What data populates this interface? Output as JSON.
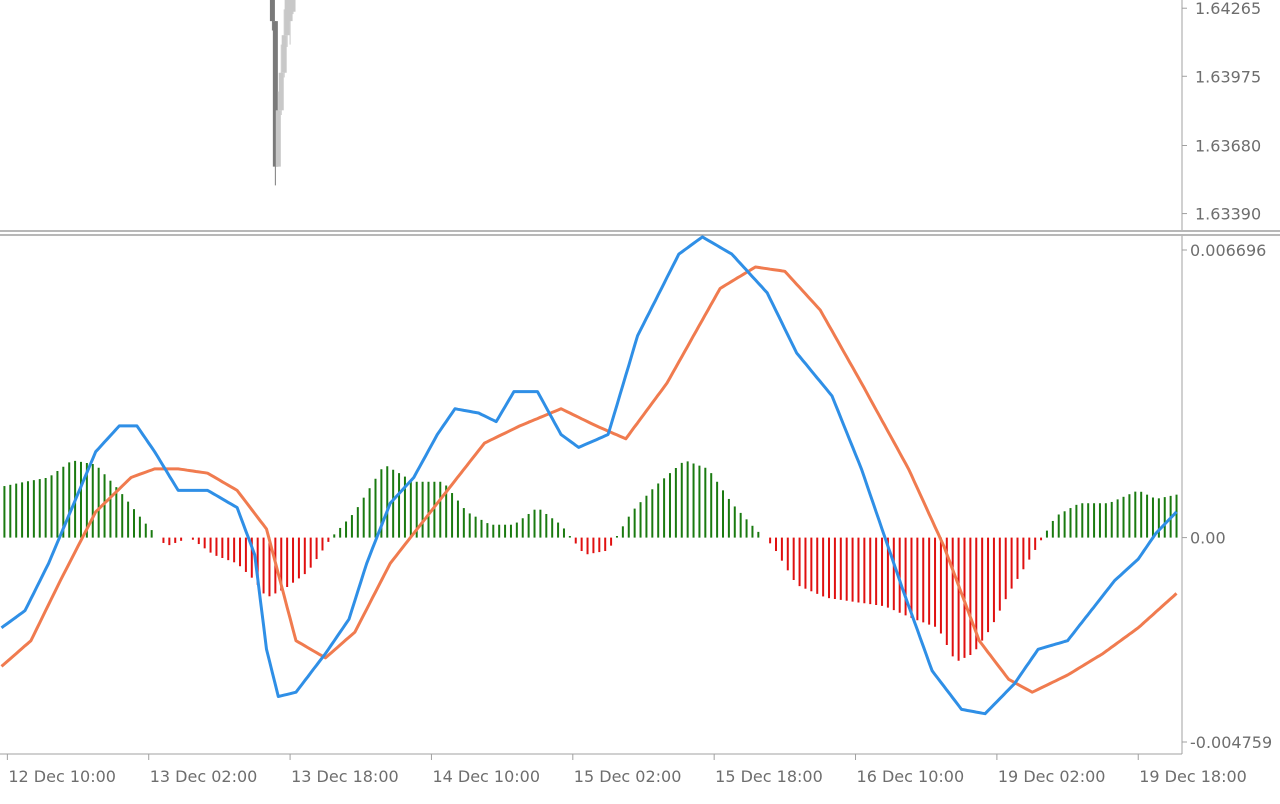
{
  "colors": {
    "background": "#ffffff",
    "axis_text": "#6e6e6e",
    "separator": "#a0a0a0",
    "candle_dark": "#7a7a7a",
    "candle_light": "#c8c8c8",
    "macd_line": "#2f8fe6",
    "signal_line": "#f07b4f",
    "hist_positive": "#1a7a10",
    "hist_negative": "#e01010"
  },
  "chart_data": [
    {
      "type": "candlestick",
      "panel": "price",
      "title": "",
      "y_tick_labels": [
        "1.64265",
        "1.63975",
        "1.63680",
        "1.63390"
      ],
      "ylim": [
        1.6332,
        1.643
      ],
      "visible_candles": [
        {
          "index": 92,
          "open": 1.643,
          "high": 1.643,
          "low": 1.6417,
          "close": 1.6421,
          "direction": "down"
        },
        {
          "index": 93,
          "open": 1.6421,
          "high": 1.6421,
          "low": 1.6351,
          "close": 1.6359,
          "direction": "down"
        },
        {
          "index": 94,
          "open": 1.6359,
          "high": 1.6391,
          "low": 1.6359,
          "close": 1.6383,
          "direction": "up"
        },
        {
          "index": 95,
          "open": 1.6383,
          "high": 1.6411,
          "low": 1.6381,
          "close": 1.6399,
          "direction": "up"
        },
        {
          "index": 96,
          "open": 1.6399,
          "high": 1.6426,
          "low": 1.6397,
          "close": 1.6415,
          "direction": "up"
        },
        {
          "index": 97,
          "open": 1.6415,
          "high": 1.643,
          "low": 1.641,
          "close": 1.643,
          "direction": "up"
        },
        {
          "index": 98,
          "open": 1.6421,
          "high": 1.643,
          "low": 1.6411,
          "close": 1.643,
          "direction": "up"
        },
        {
          "index": 99,
          "open": 1.6425,
          "high": 1.643,
          "low": 1.6424,
          "close": 1.643,
          "direction": "up"
        }
      ]
    },
    {
      "type": "macd",
      "panel": "indicator",
      "title": "",
      "y_tick_labels": [
        "0.006696",
        "0.00",
        "-0.004759"
      ],
      "ylim": [
        -0.004759,
        0.006696
      ],
      "bar_count": 400,
      "x_tick_labels": [
        "12 Dec 10:00",
        "13 Dec 02:00",
        "13 Dec 18:00",
        "14 Dec 10:00",
        "15 Dec 02:00",
        "15 Dec 18:00",
        "16 Dec 10:00",
        "19 Dec 02:00",
        "19 Dec 18:00"
      ],
      "x_tick_bar_index": [
        2,
        50,
        98,
        146,
        194,
        242,
        290,
        338,
        386
      ],
      "macd_line": [
        [
          0,
          -0.0021
        ],
        [
          8,
          -0.0017
        ],
        [
          16,
          -0.0006
        ],
        [
          24,
          0.0007
        ],
        [
          32,
          0.002
        ],
        [
          40,
          0.0026
        ],
        [
          46,
          0.0026
        ],
        [
          52,
          0.002
        ],
        [
          60,
          0.0011
        ],
        [
          70,
          0.0011
        ],
        [
          80,
          0.0007
        ],
        [
          86,
          -0.0004
        ],
        [
          90,
          -0.0026
        ],
        [
          94,
          -0.0037
        ],
        [
          100,
          -0.0036
        ],
        [
          110,
          -0.0027
        ],
        [
          118,
          -0.0019
        ],
        [
          124,
          -0.0006
        ],
        [
          132,
          0.0008
        ],
        [
          140,
          0.0014
        ],
        [
          148,
          0.0024
        ],
        [
          154,
          0.003
        ],
        [
          162,
          0.0029
        ],
        [
          168,
          0.0027
        ],
        [
          174,
          0.0034
        ],
        [
          182,
          0.0034
        ],
        [
          190,
          0.0024
        ],
        [
          196,
          0.0021
        ],
        [
          206,
          0.0024
        ],
        [
          216,
          0.0047
        ],
        [
          230,
          0.0066
        ],
        [
          238,
          0.007
        ],
        [
          248,
          0.0066
        ],
        [
          260,
          0.0057
        ],
        [
          270,
          0.0043
        ],
        [
          282,
          0.0033
        ],
        [
          292,
          0.0016
        ],
        [
          306,
          -0.0012
        ],
        [
          316,
          -0.0031
        ],
        [
          326,
          -0.004
        ],
        [
          334,
          -0.0041
        ],
        [
          344,
          -0.0034
        ],
        [
          352,
          -0.0026
        ],
        [
          362,
          -0.0024
        ],
        [
          370,
          -0.0017
        ],
        [
          378,
          -0.001
        ],
        [
          386,
          -0.0005
        ],
        [
          392,
          0.0001
        ],
        [
          399,
          0.0006
        ]
      ],
      "signal_line": [
        [
          0,
          -0.003
        ],
        [
          10,
          -0.0024
        ],
        [
          20,
          -0.001
        ],
        [
          32,
          0.0006
        ],
        [
          44,
          0.0014
        ],
        [
          52,
          0.0016
        ],
        [
          60,
          0.0016
        ],
        [
          70,
          0.0015
        ],
        [
          80,
          0.0011
        ],
        [
          90,
          0.0002
        ],
        [
          100,
          -0.0024
        ],
        [
          110,
          -0.0028
        ],
        [
          120,
          -0.0022
        ],
        [
          132,
          -0.0006
        ],
        [
          148,
          0.0008
        ],
        [
          164,
          0.0022
        ],
        [
          176,
          0.0026
        ],
        [
          190,
          0.003
        ],
        [
          202,
          0.0026
        ],
        [
          212,
          0.0023
        ],
        [
          226,
          0.0036
        ],
        [
          244,
          0.0058
        ],
        [
          256,
          0.0063
        ],
        [
          266,
          0.0062
        ],
        [
          278,
          0.0053
        ],
        [
          292,
          0.0036
        ],
        [
          308,
          0.0016
        ],
        [
          320,
          -0.0002
        ],
        [
          332,
          -0.0024
        ],
        [
          342,
          -0.0033
        ],
        [
          350,
          -0.0036
        ],
        [
          362,
          -0.0032
        ],
        [
          374,
          -0.0027
        ],
        [
          386,
          -0.0021
        ],
        [
          399,
          -0.0013
        ]
      ],
      "histogram": [
        [
          1,
          0.0012
        ],
        [
          8,
          0.0013
        ],
        [
          16,
          0.0014
        ],
        [
          24,
          0.0018
        ],
        [
          32,
          0.0017
        ],
        [
          40,
          0.0011
        ],
        [
          48,
          0.0004
        ],
        [
          56,
          -0.0002
        ],
        [
          64,
          0.0
        ],
        [
          72,
          -0.0004
        ],
        [
          80,
          -0.0006
        ],
        [
          86,
          -0.001
        ],
        [
          90,
          -0.0014
        ],
        [
          96,
          -0.0012
        ],
        [
          104,
          -0.0008
        ],
        [
          112,
          0.0
        ],
        [
          120,
          0.0006
        ],
        [
          130,
          0.0017
        ],
        [
          140,
          0.0013
        ],
        [
          150,
          0.0013
        ],
        [
          158,
          0.0006
        ],
        [
          166,
          0.0003
        ],
        [
          174,
          0.0003
        ],
        [
          182,
          0.0007
        ],
        [
          190,
          0.0003
        ],
        [
          198,
          -0.0004
        ],
        [
          206,
          -0.0003
        ],
        [
          214,
          0.0006
        ],
        [
          222,
          0.0012
        ],
        [
          232,
          0.0018
        ],
        [
          240,
          0.0016
        ],
        [
          248,
          0.0008
        ],
        [
          256,
          0.0002
        ],
        [
          262,
          -0.0002
        ],
        [
          270,
          -0.0011
        ],
        [
          280,
          -0.0014
        ],
        [
          290,
          -0.0015
        ],
        [
          300,
          -0.0016
        ],
        [
          310,
          -0.0019
        ],
        [
          318,
          -0.0021
        ],
        [
          324,
          -0.0029
        ],
        [
          330,
          -0.0027
        ],
        [
          336,
          -0.0021
        ],
        [
          342,
          -0.0013
        ],
        [
          350,
          -0.0004
        ],
        [
          358,
          0.0005
        ],
        [
          366,
          0.0008
        ],
        [
          376,
          0.0008
        ],
        [
          386,
          0.0011
        ],
        [
          392,
          0.0009
        ],
        [
          399,
          0.001
        ]
      ]
    }
  ]
}
